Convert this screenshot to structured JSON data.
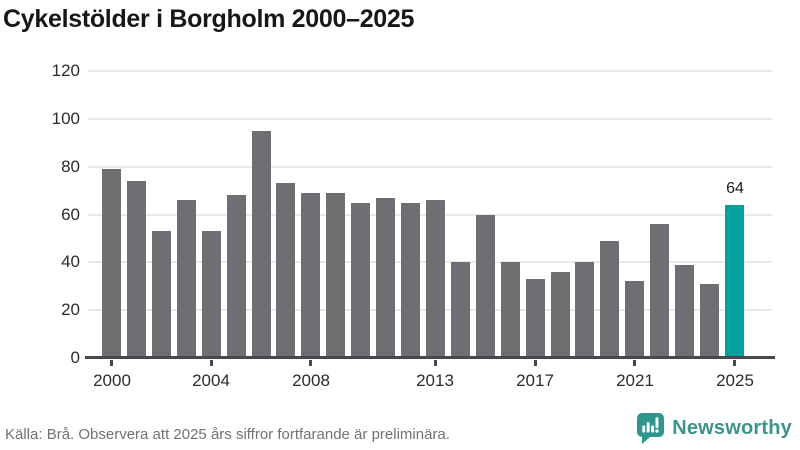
{
  "title": "Cykelstölder i Borgholm 2000–2025",
  "chart_data": {
    "type": "bar",
    "categories": [
      "2000",
      "2001",
      "2002",
      "2003",
      "2004",
      "2005",
      "2006",
      "2007",
      "2008",
      "2009",
      "2010",
      "2011",
      "2012",
      "2013",
      "2014",
      "2015",
      "2016",
      "2017",
      "2018",
      "2019",
      "2020",
      "2021",
      "2022",
      "2023",
      "2024",
      "2025"
    ],
    "values": [
      79,
      74,
      53,
      66,
      53,
      68,
      95,
      73,
      69,
      69,
      65,
      67,
      65,
      66,
      40,
      60,
      40,
      33,
      36,
      40,
      49,
      32,
      56,
      39,
      31,
      64
    ],
    "title": "Cykelstölder i Borgholm 2000–2025",
    "xlabel": "",
    "ylabel": "",
    "ylim": [
      0,
      120
    ],
    "y_ticks": [
      0,
      20,
      40,
      60,
      80,
      100,
      120
    ],
    "x_ticks": [
      {
        "index": 0,
        "label": "2000"
      },
      {
        "index": 4,
        "label": "2004"
      },
      {
        "index": 8,
        "label": "2008"
      },
      {
        "index": 13,
        "label": "2013"
      },
      {
        "index": 17,
        "label": "2017"
      },
      {
        "index": 21,
        "label": "2021"
      },
      {
        "index": 25,
        "label": "2025"
      }
    ],
    "grid": true,
    "legend": "none",
    "bar_color": "#6e6e73",
    "highlight_index": 25,
    "highlight_color": "#00a29b",
    "highlight_value_label": "64"
  },
  "footer": {
    "source": "Källa: Brå. Observera att 2025 års siffror fortfarande är preliminära.",
    "brand": "Newsworthy",
    "brand_color": "#3c948b",
    "logo_icon": "speech-bubble-bar-chart-exclamation"
  }
}
